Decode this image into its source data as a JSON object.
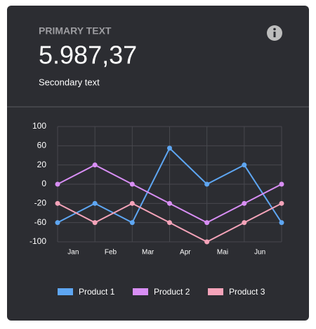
{
  "header": {
    "title": "PRIMARY TEXT",
    "value": "5.987,37",
    "subtitle": "Secondary text"
  },
  "chart_data": {
    "type": "line",
    "categories": [
      "Jan",
      "Feb",
      "Mar",
      "Apr",
      "Mai",
      "Jun",
      null
    ],
    "series": [
      {
        "name": "Product 1",
        "color": "#5ea6f2",
        "values": [
          -60,
          -20,
          -60,
          55,
          0,
          20,
          -60
        ]
      },
      {
        "name": "Product 2",
        "color": "#d88ef4",
        "values": [
          0,
          20,
          0,
          -20,
          -60,
          -20,
          0
        ]
      },
      {
        "name": "Product 3",
        "color": "#f4a3b9",
        "values": [
          -20,
          -60,
          -20,
          -60,
          -100,
          -60,
          -20
        ]
      }
    ],
    "ylim": [
      -100,
      100
    ],
    "yticks": [
      -100,
      -60,
      -20,
      0,
      20,
      60,
      100
    ],
    "grid": true
  }
}
